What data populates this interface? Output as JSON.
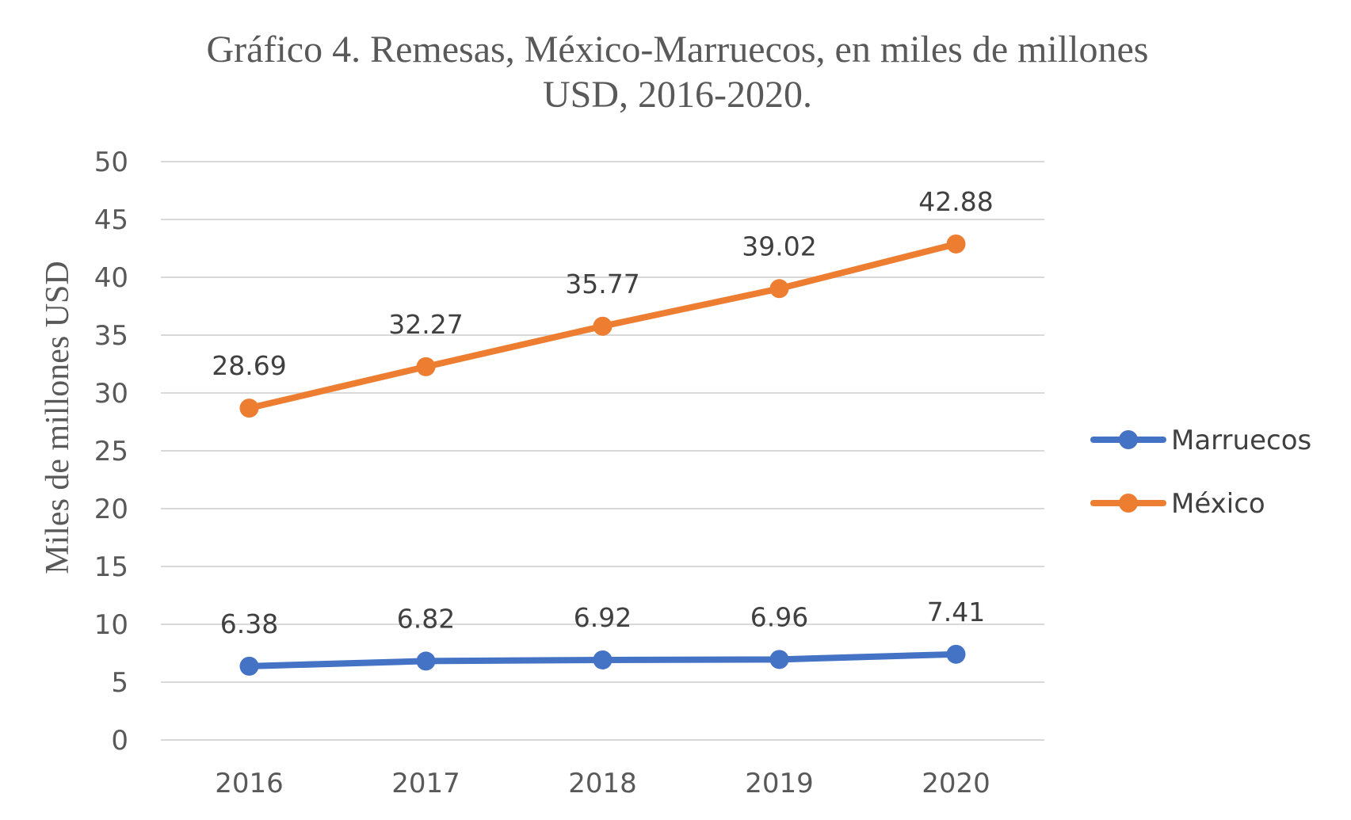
{
  "chart_data": {
    "type": "line",
    "title_lines": [
      "Gráfico 4. Remesas, México-Marruecos, en miles de millones",
      "USD, 2016-2020."
    ],
    "xlabel": "",
    "ylabel": "Miles de millones USD",
    "categories": [
      "2016",
      "2017",
      "2018",
      "2019",
      "2020"
    ],
    "ylim": [
      0,
      50
    ],
    "yticks": [
      0,
      5,
      10,
      15,
      20,
      25,
      30,
      35,
      40,
      45,
      50
    ],
    "grid": true,
    "legend_position": "right",
    "series": [
      {
        "name": "Marruecos",
        "color": "#4472c4",
        "values": [
          6.38,
          6.82,
          6.92,
          6.96,
          7.41
        ],
        "labels": [
          "6.38",
          "6.82",
          "6.92",
          "6.96",
          "7.41"
        ]
      },
      {
        "name": "México",
        "color": "#ed7d31",
        "values": [
          28.69,
          32.27,
          35.77,
          39.02,
          42.88
        ],
        "labels": [
          "28.69",
          "32.27",
          "35.77",
          "39.02",
          "42.88"
        ]
      }
    ]
  }
}
